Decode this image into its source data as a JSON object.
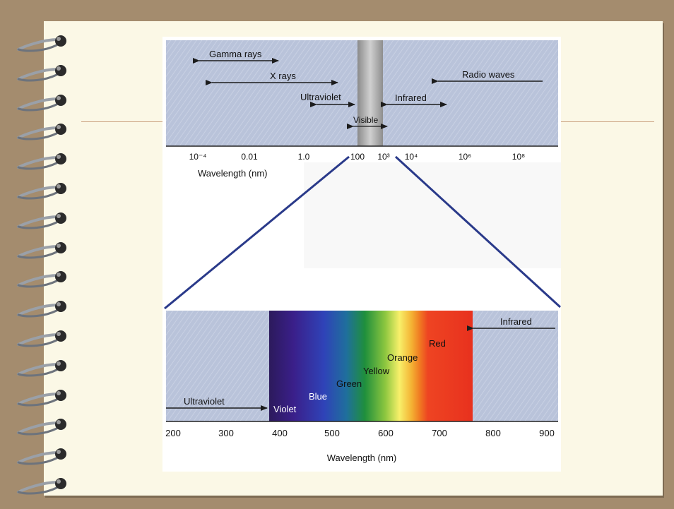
{
  "top_panel": {
    "gamma": "Gamma rays",
    "xrays": "X rays",
    "radio": "Radio waves",
    "uv": "Ultraviolet",
    "ir": "Infrared",
    "visible": "Visible",
    "ticks": [
      "10⁻⁴",
      "0.01",
      "1.0",
      "100",
      "10³",
      "10⁴",
      "10⁶",
      "10⁸"
    ],
    "axis_label": "Wavelength (nm)"
  },
  "bottom_panel": {
    "ir": "Infrared",
    "uv": "Ultraviolet",
    "colors": [
      "Violet",
      "Blue",
      "Green",
      "Yellow",
      "Orange",
      "Red"
    ],
    "ticks": [
      "200",
      "300",
      "400",
      "500",
      "600",
      "700",
      "800",
      "900"
    ],
    "axis_label": "Wavelength (nm)"
  },
  "notebook": {
    "ring_count": 16
  }
}
